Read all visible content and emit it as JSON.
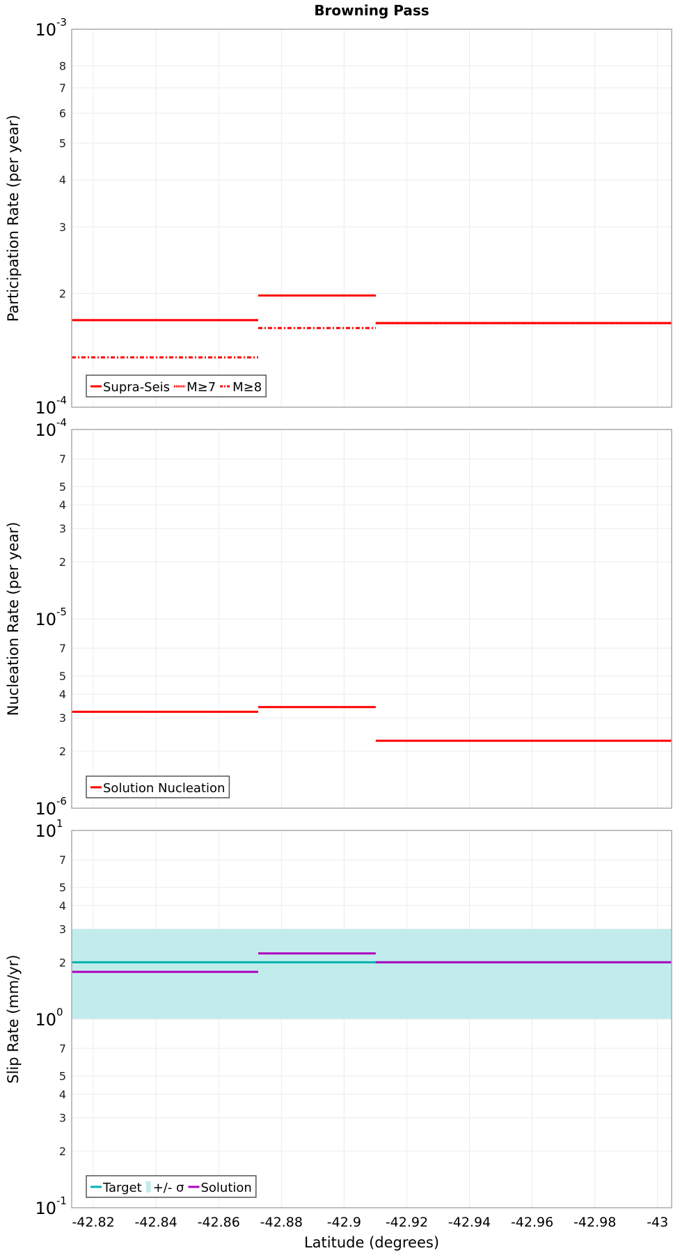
{
  "chart_data": [
    {
      "type": "line",
      "title": "Browning Pass",
      "ylabel": "Participation Rate (per year)",
      "yscale": "log",
      "ylim": [
        0.0001,
        0.001
      ],
      "major_ticks": [
        {
          "base": "10",
          "exp": "-4",
          "value": 0.0001
        },
        {
          "base": "10",
          "exp": "-3",
          "value": 0.001
        }
      ],
      "minor_ticks": [
        {
          "label": "2",
          "value": 0.0002
        },
        {
          "label": "3",
          "value": 0.0003
        },
        {
          "label": "4",
          "value": 0.0004
        },
        {
          "label": "5",
          "value": 0.0005
        },
        {
          "label": "6",
          "value": 0.0006
        },
        {
          "label": "7",
          "value": 0.0007
        },
        {
          "label": "8",
          "value": 0.0008
        }
      ],
      "legend_position": "bottom-left",
      "series": [
        {
          "name": "Supra-Seis",
          "color": "#ff0000",
          "style": "solid",
          "segments": [
            [
              -42.8131,
              -42.8726,
              0.00017
            ],
            [
              -42.8726,
              -42.9101,
              0.0001975
            ],
            [
              -42.9101,
              -43.0045,
              0.000167
            ]
          ]
        },
        {
          "name": "M≥7",
          "color": "#ff0000",
          "style": "dotted",
          "segments": [
            [
              -42.8131,
              -42.8726,
              0.00017
            ],
            [
              -42.8726,
              -42.9101,
              0.0001975
            ],
            [
              -42.9101,
              -43.0045,
              0.000167
            ]
          ]
        },
        {
          "name": "M≥8",
          "color": "#ff0000",
          "style": "dashdot",
          "segments": [
            [
              -42.8131,
              -42.8726,
              0.0001355
            ],
            [
              -42.8726,
              -42.9101,
              0.000162
            ],
            [
              -42.9101,
              -43.0045,
              0.000167
            ]
          ]
        }
      ]
    },
    {
      "type": "line",
      "ylabel": "Nucleation Rate (per year)",
      "yscale": "log",
      "ylim": [
        1e-06,
        0.0001
      ],
      "major_ticks": [
        {
          "base": "10",
          "exp": "-6",
          "value": 1e-06
        },
        {
          "base": "10",
          "exp": "-5",
          "value": 1e-05
        },
        {
          "base": "10",
          "exp": "-4",
          "value": 0.0001
        }
      ],
      "minor_ticks": [
        {
          "label": "2",
          "value": 2e-06
        },
        {
          "label": "3",
          "value": 3e-06
        },
        {
          "label": "4",
          "value": 4e-06
        },
        {
          "label": "5",
          "value": 5e-06
        },
        {
          "label": "7",
          "value": 7e-06
        },
        {
          "label": "2",
          "value": 2e-05
        },
        {
          "label": "3",
          "value": 3e-05
        },
        {
          "label": "4",
          "value": 4e-05
        },
        {
          "label": "5",
          "value": 5e-05
        },
        {
          "label": "7",
          "value": 7e-05
        }
      ],
      "legend_position": "bottom-left",
      "series": [
        {
          "name": "Solution Nucleation",
          "color": "#ff0000",
          "style": "solid",
          "segments": [
            [
              -42.8131,
              -42.8726,
              3.23e-06
            ],
            [
              -42.8726,
              -42.9101,
              3.42e-06
            ],
            [
              -42.9101,
              -43.0045,
              2.27e-06
            ]
          ]
        }
      ]
    },
    {
      "type": "line",
      "ylabel": "Slip Rate (mm/yr)",
      "xlabel": "Latitude (degrees)",
      "yscale": "log",
      "ylim": [
        0.1,
        10
      ],
      "major_ticks": [
        {
          "base": "10",
          "exp": "-1",
          "value": 0.1
        },
        {
          "base": "10",
          "exp": "0",
          "value": 1
        },
        {
          "base": "10",
          "exp": "1",
          "value": 10
        }
      ],
      "minor_ticks": [
        {
          "label": "2",
          "value": 0.2
        },
        {
          "label": "3",
          "value": 0.3
        },
        {
          "label": "4",
          "value": 0.4
        },
        {
          "label": "5",
          "value": 0.5
        },
        {
          "label": "7",
          "value": 0.7
        },
        {
          "label": "2",
          "value": 2
        },
        {
          "label": "3",
          "value": 3
        },
        {
          "label": "4",
          "value": 4
        },
        {
          "label": "5",
          "value": 5
        },
        {
          "label": "7",
          "value": 7
        }
      ],
      "legend_position": "bottom-left",
      "band": {
        "name": "+/- σ",
        "color": "#c2ecec",
        "low": 1,
        "high": 3
      },
      "series": [
        {
          "name": "Target",
          "color": "#00b0b0",
          "style": "solid",
          "segments": [
            [
              -42.8131,
              -43.0045,
              2.0
            ]
          ]
        },
        {
          "name": "+/- σ",
          "color": "#c2ecec",
          "style": "band",
          "segments": []
        },
        {
          "name": "Solution",
          "color": "#b000c0",
          "style": "solid",
          "segments": [
            [
              -42.8131,
              -42.8726,
              1.78
            ],
            [
              -42.8726,
              -42.9101,
              2.23
            ],
            [
              -42.9101,
              -43.0045,
              2.0
            ]
          ]
        }
      ]
    }
  ],
  "x_axis": {
    "xlim": [
      -42.8131,
      -43.0045
    ],
    "ticks": [
      "-42.82",
      "-42.84",
      "-42.86",
      "-42.88",
      "-42.9",
      "-42.92",
      "-42.94",
      "-42.96",
      "-42.98",
      "-43"
    ],
    "tick_values": [
      -42.82,
      -42.84,
      -42.86,
      -42.88,
      -42.9,
      -42.92,
      -42.94,
      -42.96,
      -42.98,
      -43
    ]
  }
}
